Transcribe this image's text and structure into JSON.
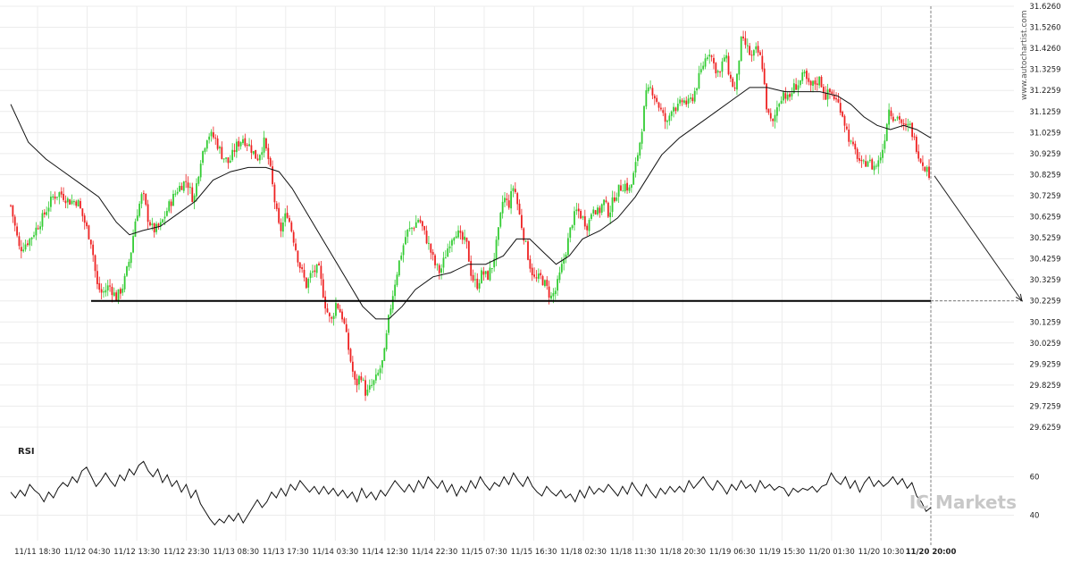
{
  "chart_data": [
    {
      "type": "candlestick",
      "watermark_vertical": "www.autochartist.com",
      "watermark_logo": "IC Markets",
      "y_ticks": [
        "31.6260",
        "31.5260",
        "31.4260",
        "31.3259",
        "31.2259",
        "31.1259",
        "31.0259",
        "30.9259",
        "30.8259",
        "30.7259",
        "30.6259",
        "30.5259",
        "30.4259",
        "30.3259",
        "30.2259",
        "30.1259",
        "30.0259",
        "29.9259",
        "29.8259",
        "29.7259",
        "29.6259"
      ],
      "ylim": [
        29.6259,
        31.626
      ],
      "x_ticks": [
        "11/11 18:30",
        "11/12 04:30",
        "11/12 13:30",
        "11/12 23:30",
        "11/13 08:30",
        "11/13 17:30",
        "11/14 03:30",
        "11/14 12:30",
        "11/14 22:30",
        "11/15 07:30",
        "11/15 16:30",
        "11/18 02:30",
        "11/18 11:30",
        "11/18 20:30",
        "11/19 06:30",
        "11/19 15:30",
        "11/20 01:30",
        "11/20 10:30",
        "11/20 20:00"
      ],
      "current_x_tick": "11/20 20:00",
      "support_level": 30.2259,
      "projection": {
        "from": 30.82,
        "to": 30.2259
      },
      "candle_colors": {
        "up": "#33cc33",
        "down": "#ee2222"
      },
      "price_path": [
        [
          0,
          30.68
        ],
        [
          10,
          30.47
        ],
        [
          22,
          30.52
        ],
        [
          36,
          30.62
        ],
        [
          48,
          30.72
        ],
        [
          56,
          30.74
        ],
        [
          66,
          30.7
        ],
        [
          76,
          30.7
        ],
        [
          84,
          30.6
        ],
        [
          92,
          30.5
        ],
        [
          98,
          30.3
        ],
        [
          104,
          30.26
        ],
        [
          112,
          30.3
        ],
        [
          120,
          30.24
        ],
        [
          128,
          30.3
        ],
        [
          136,
          30.44
        ],
        [
          142,
          30.62
        ],
        [
          150,
          30.74
        ],
        [
          156,
          30.62
        ],
        [
          162,
          30.56
        ],
        [
          170,
          30.58
        ],
        [
          180,
          30.68
        ],
        [
          190,
          30.76
        ],
        [
          200,
          30.8
        ],
        [
          208,
          30.7
        ],
        [
          216,
          30.9
        ],
        [
          224,
          31.02
        ],
        [
          232,
          31.0
        ],
        [
          240,
          30.92
        ],
        [
          248,
          30.88
        ],
        [
          256,
          30.96
        ],
        [
          264,
          31.0
        ],
        [
          272,
          30.96
        ],
        [
          280,
          30.9
        ],
        [
          288,
          30.98
        ],
        [
          294,
          30.88
        ],
        [
          300,
          30.7
        ],
        [
          306,
          30.55
        ],
        [
          314,
          30.65
        ],
        [
          320,
          30.55
        ],
        [
          328,
          30.4
        ],
        [
          336,
          30.3
        ],
        [
          342,
          30.36
        ],
        [
          350,
          30.38
        ],
        [
          358,
          30.2
        ],
        [
          364,
          30.12
        ],
        [
          370,
          30.22
        ],
        [
          378,
          30.14
        ],
        [
          386,
          29.95
        ],
        [
          392,
          29.82
        ],
        [
          398,
          29.88
        ],
        [
          404,
          29.78
        ],
        [
          410,
          29.82
        ],
        [
          416,
          29.86
        ],
        [
          424,
          29.95
        ],
        [
          430,
          30.15
        ],
        [
          436,
          30.3
        ],
        [
          442,
          30.42
        ],
        [
          450,
          30.55
        ],
        [
          458,
          30.58
        ],
        [
          464,
          30.62
        ],
        [
          470,
          30.55
        ],
        [
          476,
          30.48
        ],
        [
          482,
          30.4
        ],
        [
          488,
          30.36
        ],
        [
          494,
          30.44
        ],
        [
          500,
          30.52
        ],
        [
          506,
          30.56
        ],
        [
          512,
          30.52
        ],
        [
          518,
          30.5
        ],
        [
          524,
          30.34
        ],
        [
          530,
          30.3
        ],
        [
          536,
          30.36
        ],
        [
          542,
          30.34
        ],
        [
          548,
          30.4
        ],
        [
          554,
          30.54
        ],
        [
          560,
          30.72
        ],
        [
          566,
          30.68
        ],
        [
          572,
          30.78
        ],
        [
          578,
          30.64
        ],
        [
          584,
          30.52
        ],
        [
          590,
          30.4
        ],
        [
          596,
          30.32
        ],
        [
          602,
          30.34
        ],
        [
          608,
          30.3
        ],
        [
          614,
          30.24
        ],
        [
          620,
          30.28
        ],
        [
          626,
          30.38
        ],
        [
          632,
          30.48
        ],
        [
          638,
          30.6
        ],
        [
          644,
          30.66
        ],
        [
          650,
          30.62
        ],
        [
          656,
          30.58
        ],
        [
          662,
          30.68
        ],
        [
          668,
          30.64
        ],
        [
          674,
          30.7
        ],
        [
          680,
          30.64
        ],
        [
          686,
          30.72
        ],
        [
          692,
          30.76
        ],
        [
          698,
          30.78
        ],
        [
          704,
          30.75
        ],
        [
          710,
          30.86
        ],
        [
          716,
          31.0
        ],
        [
          722,
          31.2
        ],
        [
          728,
          31.24
        ],
        [
          734,
          31.18
        ],
        [
          740,
          31.12
        ],
        [
          746,
          31.06
        ],
        [
          752,
          31.16
        ],
        [
          758,
          31.14
        ],
        [
          764,
          31.18
        ],
        [
          770,
          31.16
        ],
        [
          776,
          31.2
        ],
        [
          782,
          31.28
        ],
        [
          788,
          31.36
        ],
        [
          794,
          31.42
        ],
        [
          800,
          31.34
        ],
        [
          806,
          31.3
        ],
        [
          812,
          31.4
        ],
        [
          818,
          31.28
        ],
        [
          824,
          31.22
        ],
        [
          830,
          31.46
        ],
        [
          836,
          31.44
        ],
        [
          842,
          31.38
        ],
        [
          848,
          31.42
        ],
        [
          854,
          31.36
        ],
        [
          860,
          31.12
        ],
        [
          866,
          31.06
        ],
        [
          872,
          31.16
        ],
        [
          878,
          31.22
        ],
        [
          884,
          31.18
        ],
        [
          890,
          31.24
        ],
        [
          896,
          31.26
        ],
        [
          902,
          31.3
        ],
        [
          908,
          31.24
        ],
        [
          914,
          31.26
        ],
        [
          920,
          31.28
        ],
        [
          926,
          31.2
        ],
        [
          932,
          31.22
        ],
        [
          938,
          31.18
        ],
        [
          944,
          31.14
        ],
        [
          950,
          31.04
        ],
        [
          956,
          30.96
        ],
        [
          962,
          30.92
        ],
        [
          968,
          30.86
        ],
        [
          974,
          30.9
        ],
        [
          980,
          30.86
        ],
        [
          986,
          30.88
        ],
        [
          992,
          30.96
        ],
        [
          998,
          31.14
        ],
        [
          1004,
          31.1
        ],
        [
          1010,
          31.1
        ],
        [
          1016,
          31.04
        ],
        [
          1022,
          31.06
        ],
        [
          1028,
          30.98
        ],
        [
          1034,
          30.9
        ],
        [
          1040,
          30.86
        ],
        [
          1046,
          30.82
        ]
      ],
      "moving_average": [
        [
          0,
          31.16
        ],
        [
          20,
          30.98
        ],
        [
          40,
          30.9
        ],
        [
          60,
          30.84
        ],
        [
          80,
          30.78
        ],
        [
          100,
          30.72
        ],
        [
          120,
          30.6
        ],
        [
          135,
          30.54
        ],
        [
          150,
          30.56
        ],
        [
          170,
          30.58
        ],
        [
          190,
          30.64
        ],
        [
          210,
          30.7
        ],
        [
          230,
          30.8
        ],
        [
          250,
          30.84
        ],
        [
          270,
          30.86
        ],
        [
          290,
          30.86
        ],
        [
          305,
          30.84
        ],
        [
          320,
          30.76
        ],
        [
          340,
          30.62
        ],
        [
          360,
          30.48
        ],
        [
          380,
          30.34
        ],
        [
          400,
          30.2
        ],
        [
          415,
          30.14
        ],
        [
          430,
          30.14
        ],
        [
          445,
          30.2
        ],
        [
          460,
          30.28
        ],
        [
          480,
          30.34
        ],
        [
          500,
          30.36
        ],
        [
          520,
          30.4
        ],
        [
          540,
          30.4
        ],
        [
          560,
          30.44
        ],
        [
          575,
          30.52
        ],
        [
          590,
          30.52
        ],
        [
          605,
          30.46
        ],
        [
          620,
          30.4
        ],
        [
          635,
          30.44
        ],
        [
          650,
          30.52
        ],
        [
          670,
          30.56
        ],
        [
          690,
          30.62
        ],
        [
          710,
          30.72
        ],
        [
          725,
          30.82
        ],
        [
          740,
          30.92
        ],
        [
          760,
          31.0
        ],
        [
          780,
          31.06
        ],
        [
          800,
          31.12
        ],
        [
          820,
          31.18
        ],
        [
          840,
          31.24
        ],
        [
          860,
          31.24
        ],
        [
          880,
          31.22
        ],
        [
          900,
          31.22
        ],
        [
          920,
          31.22
        ],
        [
          940,
          31.2
        ],
        [
          955,
          31.16
        ],
        [
          970,
          31.1
        ],
        [
          985,
          31.06
        ],
        [
          1000,
          31.04
        ],
        [
          1015,
          31.06
        ],
        [
          1030,
          31.04
        ],
        [
          1046,
          31.0
        ]
      ]
    },
    {
      "type": "line",
      "title": "RSI",
      "y_ticks": [
        "60",
        "40"
      ],
      "ylim": [
        30,
        70
      ],
      "values": [
        52,
        49,
        53,
        50,
        56,
        53,
        51,
        47,
        52,
        49,
        54,
        57,
        55,
        60,
        57,
        63,
        65,
        60,
        55,
        58,
        62,
        58,
        55,
        61,
        58,
        64,
        61,
        66,
        68,
        63,
        60,
        64,
        57,
        61,
        55,
        58,
        52,
        56,
        49,
        53,
        46,
        42,
        38,
        35,
        38,
        36,
        40,
        37,
        41,
        36,
        40,
        44,
        48,
        44,
        47,
        52,
        49,
        54,
        50,
        56,
        53,
        58,
        55,
        52,
        55,
        51,
        55,
        51,
        54,
        50,
        53,
        49,
        52,
        47,
        54,
        49,
        52,
        48,
        53,
        50,
        54,
        58,
        55,
        52,
        56,
        52,
        58,
        54,
        60,
        57,
        54,
        58,
        52,
        56,
        50,
        55,
        52,
        58,
        54,
        60,
        56,
        53,
        57,
        55,
        60,
        56,
        62,
        58,
        55,
        60,
        55,
        52,
        50,
        55,
        52,
        50,
        53,
        49,
        51,
        47,
        53,
        49,
        55,
        51,
        54,
        52,
        56,
        53,
        50,
        55,
        51,
        57,
        53,
        50,
        56,
        52,
        49,
        54,
        51,
        55,
        52,
        55,
        52,
        58,
        54,
        57,
        60,
        56,
        53,
        58,
        55,
        51,
        56,
        53,
        58,
        54,
        56,
        52,
        58,
        54,
        56,
        53,
        55,
        54,
        50,
        54,
        52,
        54,
        53,
        55,
        52,
        55,
        56,
        62,
        58,
        56,
        60,
        54,
        58,
        52,
        57,
        60,
        55,
        58,
        55,
        57,
        60,
        56,
        59,
        54,
        57,
        50,
        47,
        42,
        44
      ]
    }
  ]
}
